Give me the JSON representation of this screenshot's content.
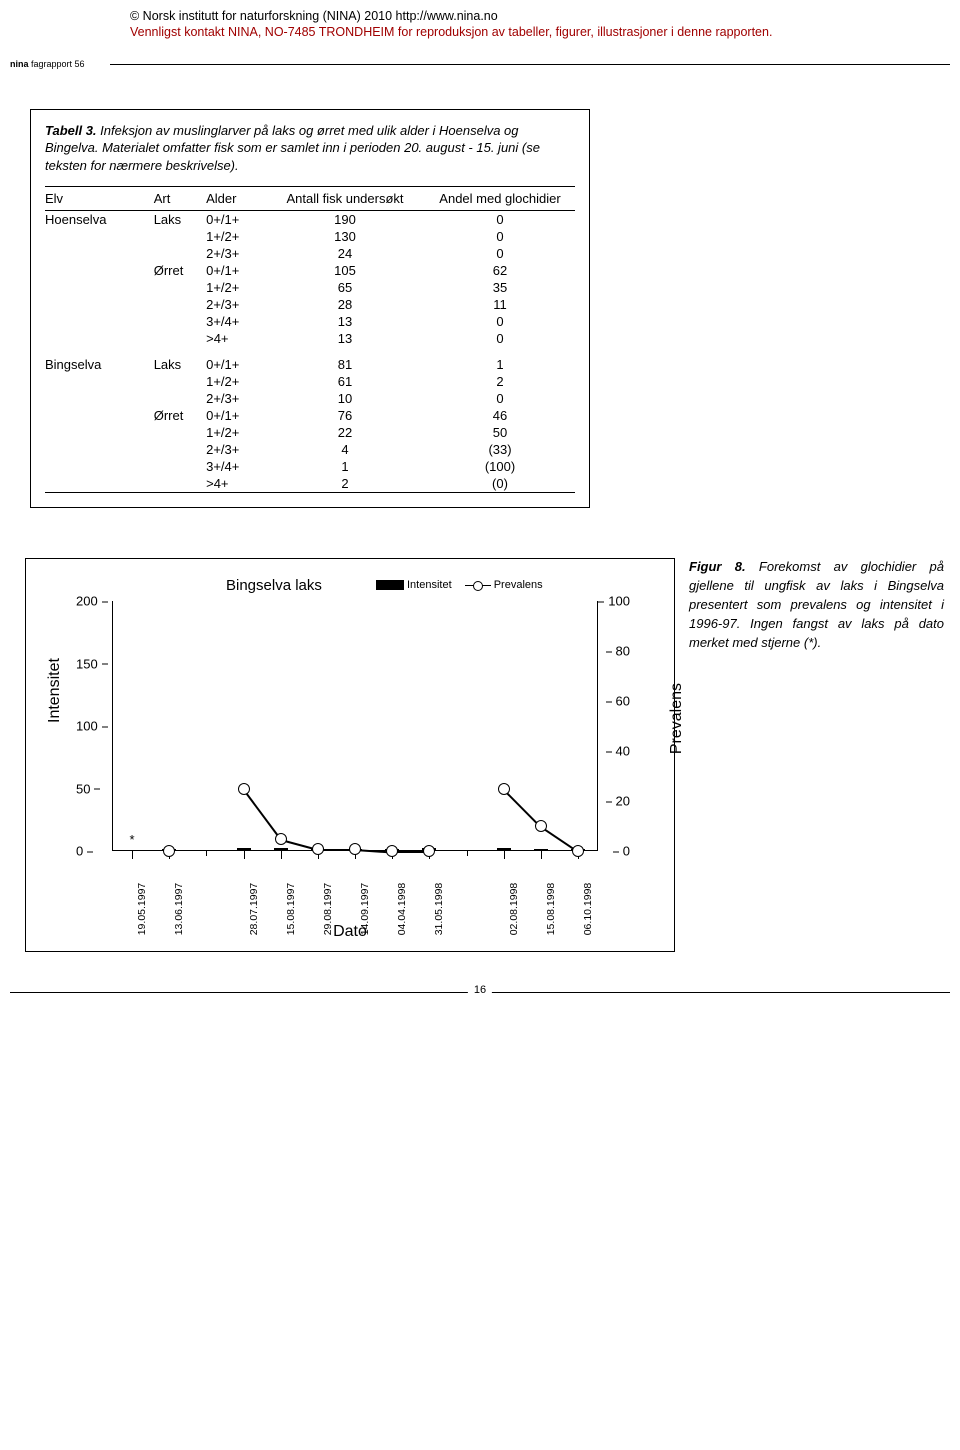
{
  "copyright": {
    "line1": "© Norsk institutt for naturforskning (NINA) 2010 http://www.nina.no",
    "line2": "Vennligst kontakt NINA, NO-7485 TRONDHEIM for reproduksjon av tabeller, figurer, illustrasjoner i denne rapporten."
  },
  "report_header": {
    "bold": "nina",
    "rest": " fagrapport 56"
  },
  "table": {
    "caption_bold": "Tabell 3.",
    "caption_rest": " Infeksjon av muslinglarver på laks og ørret med ulik alder i Hoenselva og Bingelva. Materialet omfatter fisk som er samlet inn i perioden 20. august - 15. juni (se teksten for nærmere beskrivelse).",
    "columns": [
      "Elv",
      "Art",
      "Alder",
      "Antall fisk undersøkt",
      "Andel med glochidier"
    ],
    "rows": [
      [
        "Hoenselva",
        "Laks",
        "0+/1+",
        "190",
        "0"
      ],
      [
        "",
        "",
        "1+/2+",
        "130",
        "0"
      ],
      [
        "",
        "",
        "2+/3+",
        "24",
        "0"
      ],
      [
        "",
        "Ørret",
        "0+/1+",
        "105",
        "62"
      ],
      [
        "",
        "",
        "1+/2+",
        "65",
        "35"
      ],
      [
        "",
        "",
        "2+/3+",
        "28",
        "11"
      ],
      [
        "",
        "",
        "3+/4+",
        "13",
        "0"
      ],
      [
        "",
        "",
        ">4+",
        "13",
        "0"
      ],
      [
        "Bingselva",
        "Laks",
        "0+/1+",
        "81",
        "1"
      ],
      [
        "",
        "",
        "1+/2+",
        "61",
        "2"
      ],
      [
        "",
        "",
        "2+/3+",
        "10",
        "0"
      ],
      [
        "",
        "Ørret",
        "0+/1+",
        "76",
        "46"
      ],
      [
        "",
        "",
        "1+/2+",
        "22",
        "50"
      ],
      [
        "",
        "",
        "2+/3+",
        "4",
        "(33)"
      ],
      [
        "",
        "",
        "3+/4+",
        "1",
        "(100)"
      ],
      [
        "",
        "",
        ">4+",
        "2",
        "(0)"
      ]
    ]
  },
  "figure": {
    "caption_bold": "Figur 8.",
    "caption_rest": " Forekomst av glochidier på gjellene til ungfisk av laks i Bingselva presentert som prevalens og intensitet i 1996-97. Ingen fangst av laks på dato merket med stjerne (*)."
  },
  "chart": {
    "title": "Bingselva laks",
    "legend": {
      "series1": "Intensitet",
      "series2": "Prevalens"
    },
    "y_left": {
      "label": "Intensitet",
      "min": 0,
      "max": 200,
      "ticks": [
        0,
        50,
        100,
        150,
        200
      ]
    },
    "y_right": {
      "label": "Prevalens",
      "min": 0,
      "max": 100,
      "ticks": [
        0,
        20,
        40,
        60,
        80,
        100
      ]
    },
    "x": {
      "label": "Dato",
      "categories": [
        "19.05.1997",
        "13.06.1997",
        "28.07.1997",
        "15.08.1997",
        "29.08.1997",
        "14.09.1997",
        "04.04.1998",
        "31.05.1998",
        "02.08.1998",
        "15.08.1998",
        "06.10.1998"
      ],
      "minor_after": [
        1,
        7
      ]
    },
    "star_index": 0,
    "colors": {
      "bar": "#000000",
      "line": "#000000",
      "marker_fill": "#ffffff",
      "axis": "#000000",
      "bg": "#ffffff"
    },
    "intensity": [
      null,
      0,
      1.5,
      2,
      0.5,
      0.5,
      0.5,
      1.5,
      1.5,
      0,
      0
    ],
    "prevalens": [
      null,
      0,
      25,
      5,
      1,
      1,
      0,
      0,
      25,
      10,
      0
    ],
    "line_breaks_after": [
      1,
      7
    ]
  },
  "page_number": "16"
}
